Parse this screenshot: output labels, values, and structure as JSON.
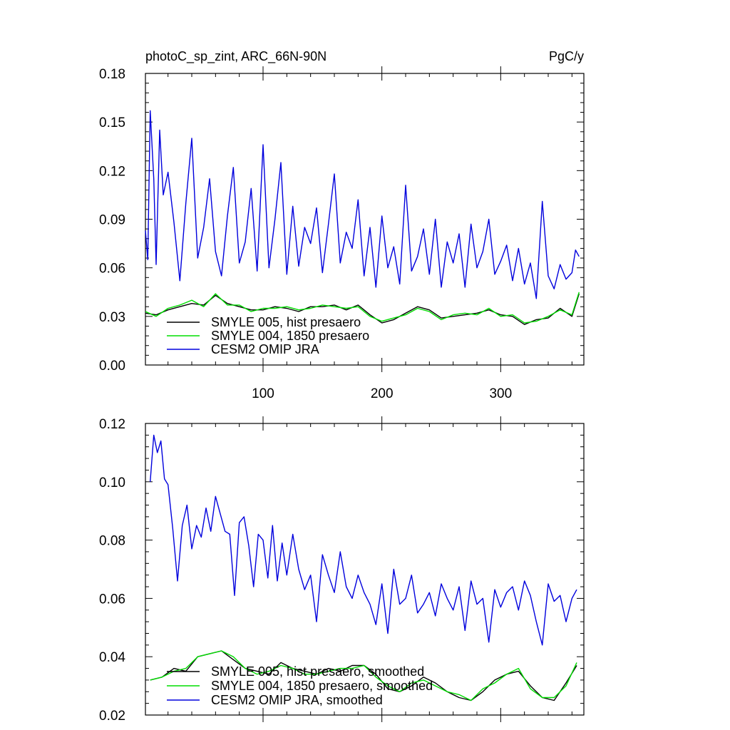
{
  "chart_data": [
    {
      "type": "line",
      "title": "photoC_sp_zint, ARC_66N-90N",
      "units": "PgC/y",
      "xlim": [
        1,
        370
      ],
      "ylim": [
        0.0,
        0.18
      ],
      "x_tick_labels": [
        "100",
        "200",
        "300"
      ],
      "x_ticks": [
        100,
        200,
        300
      ],
      "y_ticks": [
        0.0,
        0.03,
        0.06,
        0.09,
        0.12,
        0.15,
        0.18
      ],
      "y_tick_labels": [
        "0.00",
        "0.03",
        "0.06",
        "0.09",
        "0.12",
        "0.15",
        "0.18"
      ],
      "series": [
        {
          "name": "SMYLE 005, hist presaero",
          "color": "#000000",
          "x": [
            1,
            10,
            20,
            30,
            40,
            50,
            60,
            70,
            80,
            90,
            100,
            110,
            120,
            130,
            140,
            150,
            160,
            170,
            180,
            190,
            200,
            210,
            220,
            230,
            240,
            250,
            260,
            270,
            280,
            290,
            300,
            310,
            320,
            330,
            340,
            350,
            360,
            366
          ],
          "values": [
            0.032,
            0.031,
            0.034,
            0.036,
            0.038,
            0.037,
            0.043,
            0.038,
            0.036,
            0.034,
            0.034,
            0.036,
            0.035,
            0.033,
            0.036,
            0.036,
            0.037,
            0.034,
            0.037,
            0.031,
            0.026,
            0.028,
            0.032,
            0.036,
            0.034,
            0.029,
            0.03,
            0.031,
            0.032,
            0.034,
            0.031,
            0.03,
            0.025,
            0.028,
            0.029,
            0.035,
            0.03,
            0.044
          ]
        },
        {
          "name": "SMYLE 004, 1850 presaero",
          "color": "#00dd00",
          "x": [
            1,
            10,
            20,
            30,
            40,
            50,
            60,
            70,
            80,
            90,
            100,
            110,
            120,
            130,
            140,
            150,
            160,
            170,
            180,
            190,
            200,
            210,
            220,
            230,
            240,
            250,
            260,
            270,
            280,
            290,
            300,
            310,
            320,
            330,
            340,
            350,
            360,
            366
          ],
          "values": [
            0.033,
            0.03,
            0.035,
            0.037,
            0.04,
            0.036,
            0.044,
            0.037,
            0.037,
            0.033,
            0.035,
            0.035,
            0.036,
            0.034,
            0.035,
            0.037,
            0.036,
            0.035,
            0.036,
            0.03,
            0.027,
            0.029,
            0.031,
            0.035,
            0.033,
            0.028,
            0.031,
            0.032,
            0.031,
            0.035,
            0.03,
            0.031,
            0.026,
            0.027,
            0.03,
            0.034,
            0.031,
            0.045
          ]
        },
        {
          "name": "CESM2 OMIP JRA",
          "color": "#0000dd",
          "x": [
            1,
            3,
            5,
            8,
            10,
            13,
            16,
            20,
            25,
            30,
            35,
            40,
            45,
            50,
            55,
            60,
            65,
            70,
            75,
            80,
            85,
            90,
            95,
            100,
            105,
            110,
            115,
            120,
            125,
            130,
            135,
            140,
            145,
            150,
            155,
            160,
            165,
            170,
            175,
            180,
            185,
            190,
            195,
            200,
            205,
            210,
            215,
            220,
            225,
            230,
            235,
            240,
            245,
            250,
            255,
            260,
            265,
            270,
            275,
            280,
            285,
            290,
            295,
            300,
            305,
            310,
            315,
            320,
            325,
            330,
            335,
            340,
            345,
            350,
            355,
            360,
            363,
            366
          ],
          "values": [
            0.083,
            0.065,
            0.157,
            0.115,
            0.062,
            0.145,
            0.105,
            0.119,
            0.088,
            0.052,
            0.1,
            0.14,
            0.066,
            0.085,
            0.115,
            0.07,
            0.055,
            0.092,
            0.122,
            0.063,
            0.076,
            0.109,
            0.058,
            0.136,
            0.06,
            0.09,
            0.125,
            0.056,
            0.098,
            0.061,
            0.085,
            0.075,
            0.097,
            0.057,
            0.087,
            0.118,
            0.063,
            0.082,
            0.072,
            0.102,
            0.055,
            0.085,
            0.048,
            0.092,
            0.06,
            0.073,
            0.05,
            0.111,
            0.058,
            0.067,
            0.084,
            0.056,
            0.09,
            0.048,
            0.076,
            0.063,
            0.081,
            0.048,
            0.087,
            0.06,
            0.07,
            0.09,
            0.056,
            0.064,
            0.074,
            0.052,
            0.072,
            0.05,
            0.063,
            0.041,
            0.101,
            0.055,
            0.047,
            0.062,
            0.053,
            0.057,
            0.071,
            0.067
          ]
        }
      ]
    },
    {
      "type": "line",
      "title": "",
      "xlim": [
        1,
        370
      ],
      "ylim": [
        0.02,
        0.12
      ],
      "x_ticks": [
        100,
        200,
        300
      ],
      "y_ticks": [
        0.02,
        0.04,
        0.06,
        0.08,
        0.1,
        0.12
      ],
      "y_tick_labels": [
        "0.02",
        "0.04",
        "0.06",
        "0.08",
        "0.10",
        "0.12"
      ],
      "series": [
        {
          "name": "SMYLE 005, hist presaero, smoothed",
          "color": "#000000",
          "x": [
            5,
            15,
            25,
            35,
            45,
            55,
            65,
            75,
            85,
            95,
            105,
            115,
            125,
            135,
            145,
            155,
            165,
            175,
            185,
            195,
            205,
            215,
            225,
            235,
            245,
            255,
            265,
            275,
            285,
            295,
            305,
            315,
            325,
            335,
            345,
            355,
            364
          ],
          "values": [
            0.032,
            0.033,
            0.036,
            0.035,
            0.04,
            0.041,
            0.042,
            0.039,
            0.036,
            0.035,
            0.034,
            0.038,
            0.036,
            0.035,
            0.034,
            0.036,
            0.035,
            0.037,
            0.037,
            0.034,
            0.029,
            0.028,
            0.03,
            0.033,
            0.031,
            0.028,
            0.026,
            0.025,
            0.028,
            0.032,
            0.034,
            0.035,
            0.03,
            0.026,
            0.025,
            0.031,
            0.037
          ]
        },
        {
          "name": "SMYLE 004, 1850 presaero, smoothed",
          "color": "#00dd00",
          "x": [
            5,
            15,
            25,
            35,
            45,
            55,
            65,
            75,
            85,
            95,
            105,
            115,
            125,
            135,
            145,
            155,
            165,
            175,
            185,
            195,
            205,
            215,
            225,
            235,
            245,
            255,
            265,
            275,
            285,
            295,
            305,
            315,
            325,
            335,
            345,
            355,
            364
          ],
          "values": [
            0.032,
            0.033,
            0.035,
            0.036,
            0.04,
            0.041,
            0.042,
            0.04,
            0.036,
            0.034,
            0.035,
            0.037,
            0.036,
            0.034,
            0.034,
            0.035,
            0.036,
            0.036,
            0.037,
            0.033,
            0.03,
            0.028,
            0.031,
            0.032,
            0.03,
            0.028,
            0.027,
            0.025,
            0.029,
            0.031,
            0.034,
            0.036,
            0.029,
            0.026,
            0.026,
            0.03,
            0.038
          ]
        },
        {
          "name": "CESM2 OMIP JRA, smoothed",
          "color": "#0000dd",
          "x": [
            5,
            8,
            11,
            14,
            17,
            20,
            24,
            28,
            32,
            36,
            40,
            44,
            48,
            52,
            56,
            60,
            64,
            68,
            72,
            76,
            80,
            84,
            88,
            92,
            96,
            100,
            104,
            108,
            112,
            116,
            120,
            125,
            130,
            135,
            140,
            145,
            150,
            155,
            160,
            165,
            170,
            175,
            180,
            185,
            190,
            195,
            200,
            205,
            210,
            215,
            220,
            225,
            230,
            235,
            240,
            245,
            250,
            255,
            260,
            265,
            270,
            275,
            280,
            285,
            290,
            295,
            300,
            305,
            310,
            315,
            320,
            325,
            330,
            335,
            340,
            345,
            350,
            355,
            360,
            364
          ],
          "values": [
            0.1,
            0.116,
            0.11,
            0.114,
            0.101,
            0.099,
            0.084,
            0.066,
            0.085,
            0.092,
            0.077,
            0.085,
            0.081,
            0.091,
            0.083,
            0.095,
            0.089,
            0.083,
            0.082,
            0.061,
            0.086,
            0.088,
            0.078,
            0.064,
            0.082,
            0.08,
            0.067,
            0.085,
            0.066,
            0.079,
            0.068,
            0.082,
            0.07,
            0.063,
            0.068,
            0.052,
            0.075,
            0.068,
            0.062,
            0.076,
            0.064,
            0.06,
            0.068,
            0.062,
            0.058,
            0.051,
            0.065,
            0.048,
            0.07,
            0.058,
            0.06,
            0.068,
            0.055,
            0.058,
            0.062,
            0.054,
            0.065,
            0.06,
            0.056,
            0.064,
            0.049,
            0.066,
            0.058,
            0.06,
            0.045,
            0.063,
            0.057,
            0.062,
            0.064,
            0.056,
            0.066,
            0.061,
            0.052,
            0.044,
            0.065,
            0.059,
            0.061,
            0.052,
            0.06,
            0.063
          ]
        }
      ]
    }
  ]
}
